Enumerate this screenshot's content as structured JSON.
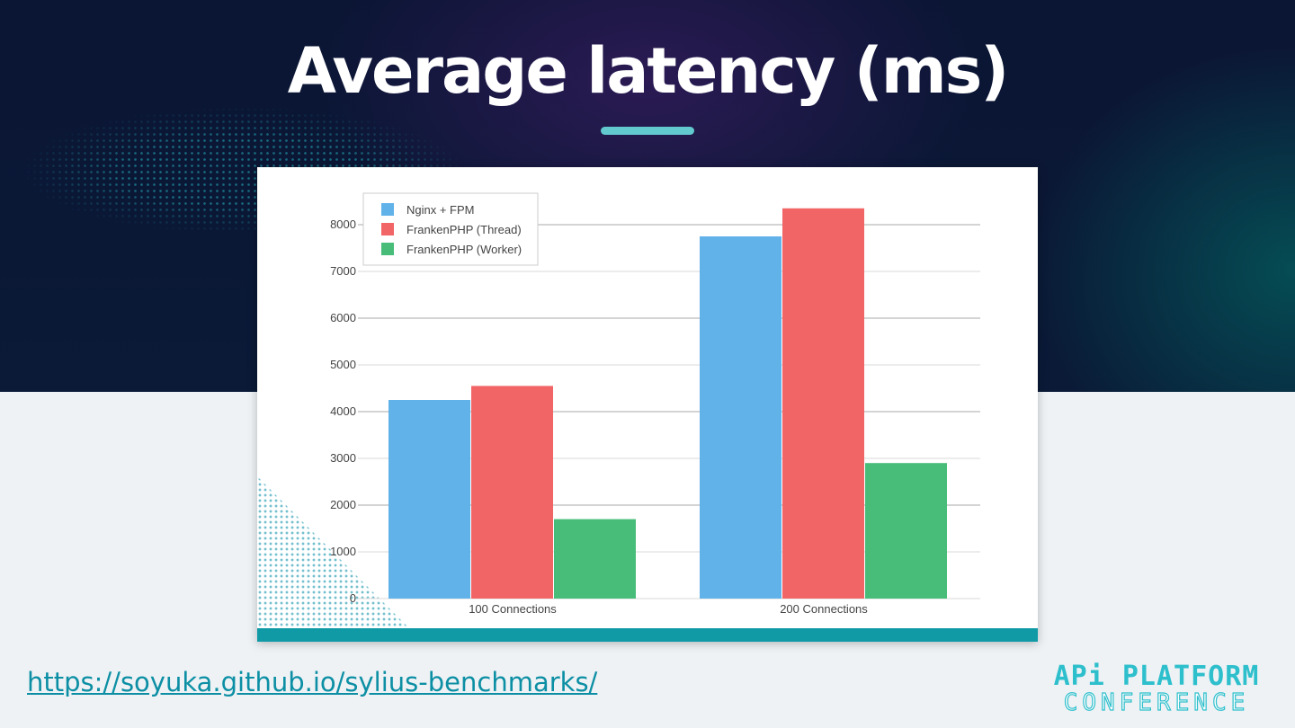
{
  "slide": {
    "title": "Average latency (ms)",
    "link_text": "https://soyuka.github.io/sylius-benchmarks/",
    "logo_line1": "APi PLATFORM",
    "logo_line2": "CONFERENCE"
  },
  "colors": {
    "accent": "#62c9cf",
    "link": "#0c8fa4",
    "card_bar": "#0f9aa6"
  },
  "chart_data": {
    "type": "bar",
    "categories": [
      "100 Connections",
      "200 Connections"
    ],
    "series": [
      {
        "name": "Nginx + FPM",
        "color": "#62b2ea",
        "values": [
          4250,
          7750
        ]
      },
      {
        "name": "FrankenPHP (Thread)",
        "color": "#f26566",
        "values": [
          4550,
          8350
        ]
      },
      {
        "name": "FrankenPHP (Worker)",
        "color": "#48bd79",
        "values": [
          1700,
          2900
        ]
      }
    ],
    "ylim": [
      0,
      8000
    ],
    "yticks": [
      0,
      1000,
      2000,
      3000,
      4000,
      5000,
      6000,
      7000,
      8000
    ],
    "legend": "top-left",
    "grid": true,
    "xlabel": "",
    "ylabel": ""
  }
}
